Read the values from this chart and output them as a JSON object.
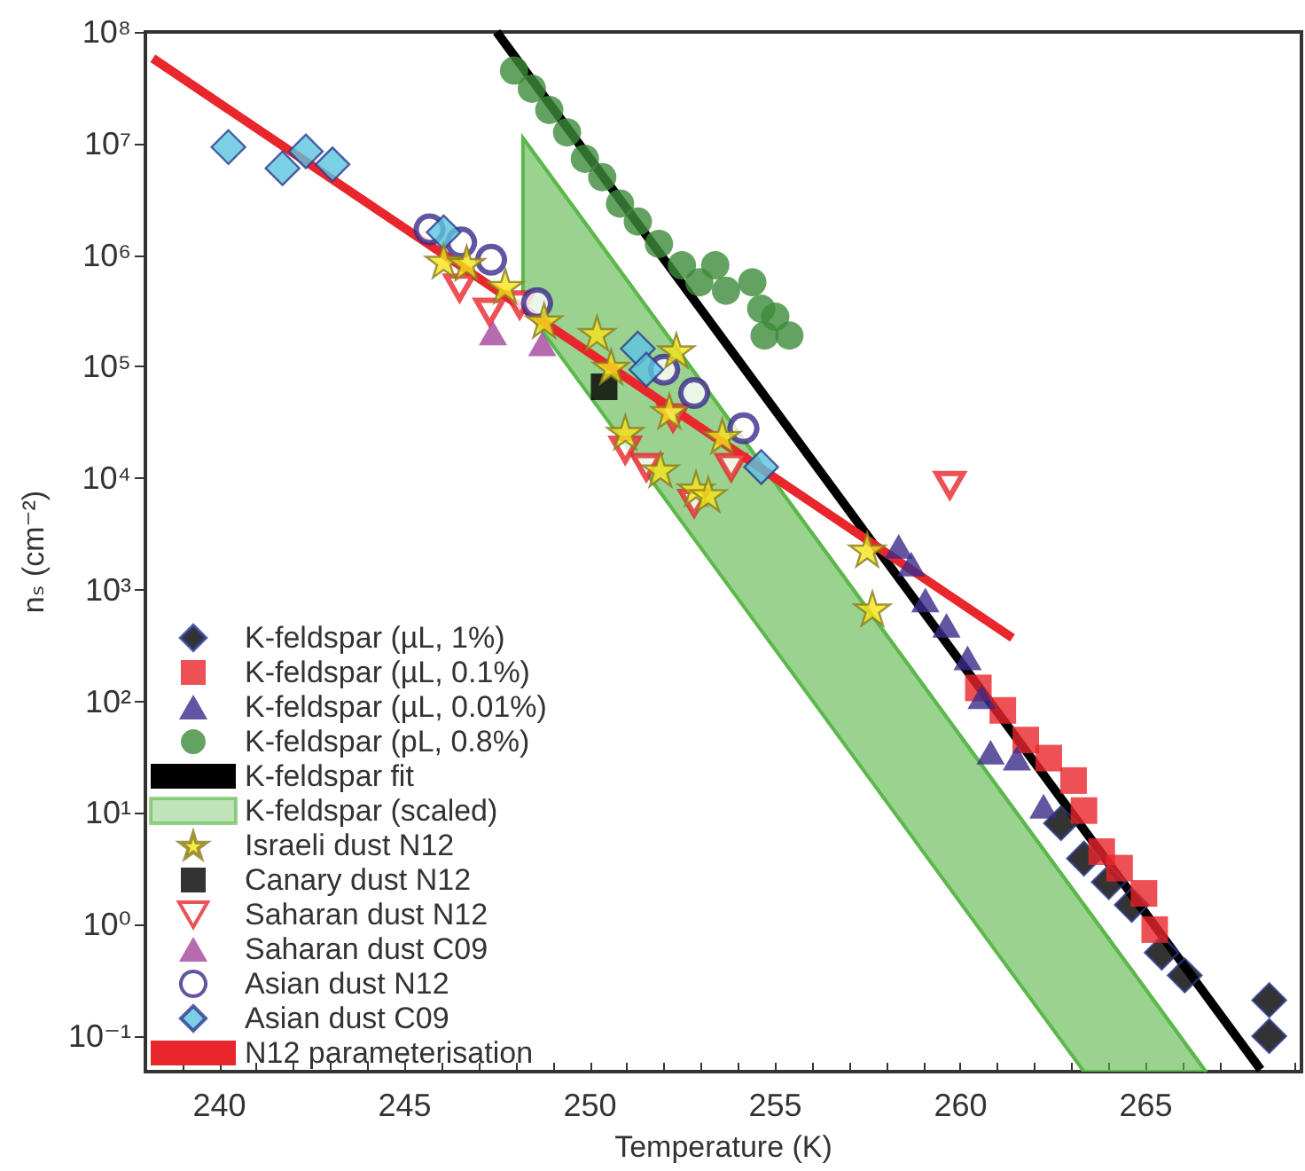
{
  "chart_data": {
    "type": "scatter",
    "xlabel": "Temperature (K)",
    "ylabel": "nₛ (cm⁻²)",
    "log": "y",
    "legend": "bottom left",
    "xlim": [
      238,
      269.2
    ],
    "xticks": [
      {
        "value": 238,
        "label": null
      },
      {
        "value": 239,
        "label": null
      },
      240,
      {
        "value": 241,
        "label": null
      },
      {
        "value": 242,
        "label": null
      },
      {
        "value": 243,
        "label": null
      },
      {
        "value": 244,
        "label": null
      },
      245,
      {
        "value": 246,
        "label": null
      },
      {
        "value": 247,
        "label": null
      },
      {
        "value": 248,
        "label": null
      },
      {
        "value": 249,
        "label": null
      },
      250,
      {
        "value": 251,
        "label": null
      },
      {
        "value": 252,
        "label": null
      },
      {
        "value": 253,
        "label": null
      },
      {
        "value": 254,
        "label": null
      },
      255,
      {
        "value": 256,
        "label": null
      },
      {
        "value": 257,
        "label": null
      },
      {
        "value": 258,
        "label": null
      },
      {
        "value": 259,
        "label": null
      },
      260,
      {
        "value": 261,
        "label": null
      },
      {
        "value": 262,
        "label": null
      },
      {
        "value": 263,
        "label": null
      },
      {
        "value": 264,
        "label": null
      },
      265,
      {
        "value": 266,
        "label": null
      },
      {
        "value": 267,
        "label": null
      },
      {
        "value": 268,
        "label": null
      },
      {
        "value": 269,
        "label": null
      }
    ],
    "ylim": [
      0.048,
      100000000
    ],
    "yticks": [
      {
        "value": 0.1,
        "label": "10⁻¹"
      },
      {
        "value": 1,
        "label": "10⁰"
      },
      {
        "value": 10,
        "label": "10¹"
      },
      {
        "value": 100,
        "label": "10²"
      },
      {
        "value": 1000,
        "label": "10³"
      },
      {
        "value": 10000,
        "label": "10⁴"
      },
      {
        "value": 100000,
        "label": "10⁵"
      },
      {
        "value": 1000000,
        "label": "10⁶"
      },
      {
        "value": 10000000,
        "label": "10⁷"
      },
      {
        "value": 100000000,
        "label": "10⁸"
      }
    ],
    "series": [
      {
        "name": "K-feldspar (µL, 1%)",
        "marker": "diamond",
        "color": "#000000",
        "x": [
          262.71,
          263.33,
          264.0,
          264.62,
          265.43,
          266.05,
          268.33,
          268.33
        ],
        "values": [
          8.1,
          3.9,
          2.4,
          1.5,
          0.56,
          0.35,
          0.21,
          0.1
        ]
      },
      {
        "name": "K-feldspar (µL, 0.1%)",
        "marker": "square",
        "color": "#e8262b",
        "x": [
          260.48,
          261.14,
          261.76,
          262.38,
          263.05,
          263.33,
          263.81,
          264.29,
          264.95,
          265.24
        ],
        "values": [
          132,
          83,
          45,
          31,
          19.5,
          10.5,
          4.5,
          3.2,
          1.9,
          0.9
        ]
      },
      {
        "name": "K-feldspar (µL, 0.01%)",
        "marker": "triangle",
        "color": "#3b2a8a",
        "x": [
          258.33,
          258.67,
          259.05,
          259.62,
          260.19,
          260.57,
          260.81,
          261.52,
          262.24
        ],
        "values": [
          2450,
          1700,
          810,
          480,
          245,
          110,
          35,
          31,
          11.5
        ]
      },
      {
        "name": "K-feldspar (pL, 0.8%)",
        "marker": "circle",
        "color": "#3d8b3a",
        "x": [
          247.95,
          248.43,
          248.9,
          249.38,
          249.86,
          250.33,
          250.81,
          251.29,
          251.86,
          252.48,
          252.95,
          253.38,
          253.67,
          254.38,
          254.62,
          255.0,
          255.38,
          254.71
        ],
        "values": [
          45000000,
          31000000,
          20000000,
          12600000,
          7300000,
          5000000,
          2900000,
          2000000,
          1260000,
          810000,
          570000,
          810000,
          480000,
          570000,
          330000,
          280000,
          190000,
          190000
        ]
      },
      {
        "name": "K-feldspar fit",
        "type": "line",
        "marker": "none",
        "color": "#000000",
        "x": [
          247.48,
          268.1
        ],
        "values": [
          100000000,
          0.05
        ]
      },
      {
        "name": "K-feldspar (scaled)",
        "type": "line",
        "marker": "none",
        "color": "#5cb84a",
        "x": [
          248.19,
          263.33,
          266.62
        ],
        "values": [
          11200000,
          1.5,
          0.048
        ],
        "upper": [
          11200000,
          1.5,
          0.048
        ],
        "lower": [
          360000,
          0.048,
          0.048
        ]
      },
      {
        "name": "Israeli dust N12",
        "marker": "star",
        "color": "#f5e31a",
        "x": [
          246.05,
          246.67,
          247.71,
          248.76,
          250.19,
          250.57,
          250.95,
          252.33,
          252.14,
          251.9,
          252.86,
          253.57,
          253.19,
          257.48,
          257.62
        ],
        "values": [
          890000,
          850000,
          530000,
          260000,
          200000,
          100000,
          26000,
          140000,
          40000,
          12000,
          8100,
          24000,
          7200,
          2300,
          680
        ]
      },
      {
        "name": "Canary dust N12",
        "marker": "square",
        "color": "#000000",
        "x": [
          250.38
        ],
        "values": [
          66000
        ]
      },
      {
        "name": "Saharan dust N12",
        "marker": "triangle_down_open",
        "color": "#e8262b",
        "x": [
          246.48,
          247.29,
          248.1,
          250.95,
          251.52,
          252.24,
          252.81,
          253.81,
          259.71
        ],
        "values": [
          510000,
          310000,
          360000,
          18000,
          12600,
          35000,
          6000,
          12600,
          8700
        ]
      },
      {
        "name": "Saharan dust C09",
        "marker": "triangle",
        "color": "#a3479b",
        "x": [
          247.38,
          248.71
        ],
        "values": [
          200000,
          160000
        ]
      },
      {
        "name": "Asian dust N12",
        "marker": "open_circle",
        "color": "#3b2a8a",
        "x": [
          245.67,
          246.52,
          247.33,
          248.57,
          252.0,
          252.81,
          254.14
        ],
        "values": [
          1700000,
          1300000,
          910000,
          370000,
          94000,
          58000,
          28000
        ]
      },
      {
        "name": "Asian dust C09",
        "marker": "diamond",
        "color": "#5bc4e0",
        "x": [
          240.24,
          241.7,
          242.33,
          243.05,
          246.05,
          251.29,
          251.52,
          254.62
        ],
        "values": [
          9300000,
          6000000,
          8500000,
          6500000,
          1600000,
          145000,
          94000,
          12600
        ]
      },
      {
        "name": "N12 parameterisation",
        "type": "line",
        "marker": "none",
        "color": "#e8262b",
        "x": [
          238.2,
          261.4
        ],
        "values": [
          58000000,
          370
        ]
      }
    ]
  }
}
